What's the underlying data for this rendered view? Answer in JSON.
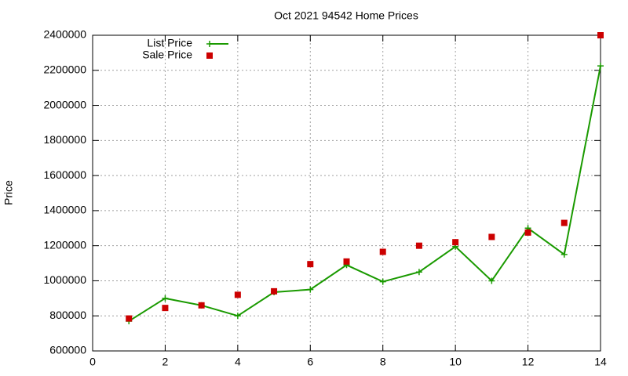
{
  "chart_data": {
    "type": "line",
    "title": "Oct 2021 94542 Home Prices",
    "y_label": "Price",
    "x": [
      1,
      2,
      3,
      4,
      5,
      6,
      7,
      8,
      9,
      10,
      11,
      12,
      13,
      14
    ],
    "series": [
      {
        "name": "List Price",
        "color": "#1a9a00",
        "style": "linespoints",
        "values": [
          770000,
          900000,
          860000,
          800000,
          935000,
          950000,
          1090000,
          995000,
          1050000,
          1195000,
          1000000,
          1300000,
          1150000,
          2225000
        ]
      },
      {
        "name": "Sale Price",
        "color": "#cc0000",
        "style": "points",
        "values": [
          785000,
          845000,
          860000,
          920000,
          940000,
          1095000,
          1110000,
          1165000,
          1200000,
          1220000,
          1250000,
          1275000,
          1330000,
          2400000
        ]
      }
    ],
    "xlim": [
      0,
      14
    ],
    "xticks": [
      0,
      2,
      4,
      6,
      8,
      10,
      12,
      14
    ],
    "ylim": [
      600000,
      2400000
    ],
    "yticks": [
      600000,
      800000,
      1000000,
      1200000,
      1400000,
      1600000,
      1800000,
      2000000,
      2200000,
      2400000
    ],
    "grid": true,
    "legend": "top-left"
  }
}
